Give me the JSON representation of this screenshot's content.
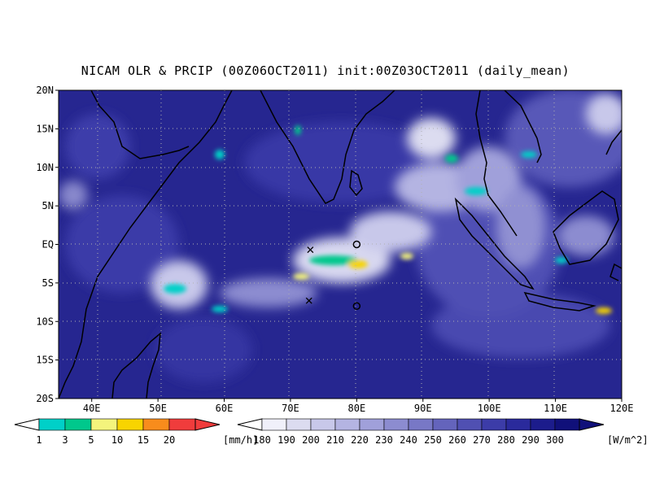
{
  "title": "NICAM OLR & PRCIP (00Z06OCT2011) init:00Z03OCT2011 (daily_mean)",
  "lat_labels": [
    "20N",
    "15N",
    "10N",
    "5N",
    "EQ",
    "5S",
    "10S",
    "15S",
    "20S"
  ],
  "lon_labels": [
    "40E",
    "50E",
    "60E",
    "70E",
    "80E",
    "90E",
    "100E",
    "110E",
    "120E"
  ],
  "precip_colorbar": {
    "values": [
      "1",
      "3",
      "5",
      "10",
      "15",
      "20"
    ],
    "unit": "[mm/h]",
    "colors": [
      "#00d0c8",
      "#00c88c",
      "#f4f47c",
      "#f8d400",
      "#f88c1c",
      "#f03c3c"
    ]
  },
  "olr_colorbar": {
    "values": [
      "180",
      "190",
      "200",
      "210",
      "220",
      "230",
      "240",
      "250",
      "260",
      "270",
      "280",
      "290",
      "300"
    ],
    "unit": "[W/m^2]",
    "colors": [
      "#f0f0fa",
      "#dcdcf0",
      "#c8c8ea",
      "#b4b4e2",
      "#a0a0da",
      "#8c8cd0",
      "#7878c6",
      "#6464bc",
      "#5050b2",
      "#3c3ca8",
      "#2a2a9c",
      "#1c1c8c",
      "#10107a"
    ]
  },
  "map": {
    "lon_range": [
      35,
      120
    ],
    "lat_range": [
      -20,
      20
    ],
    "background_color": "#2b2b9a",
    "markers": [
      {
        "type": "x",
        "lon": 73,
        "lat": -0.7
      },
      {
        "type": "x",
        "lon": 72.8,
        "lat": -7.3
      },
      {
        "type": "o",
        "lon": 80,
        "lat": 0
      },
      {
        "type": "o",
        "lon": 80,
        "lat": -8
      }
    ]
  }
}
